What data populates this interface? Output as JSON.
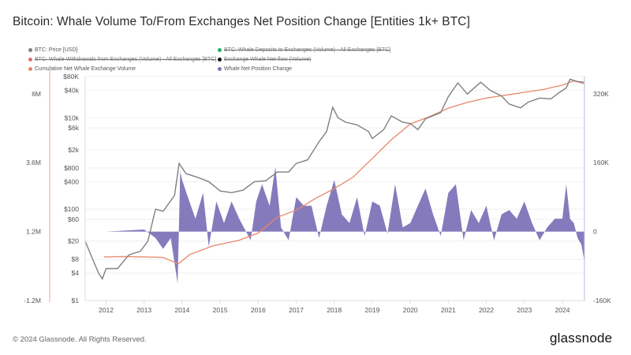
{
  "title": "Bitcoin: Whale Volume To/From Exchanges Net Position Change [Entities 1k+ BTC]",
  "footer": "© 2024 Glassnode. All Rights Reserved.",
  "brand": "glassnode",
  "colors": {
    "price": "#808080",
    "deposits": "#2eaa6b",
    "withdrawals": "#e06a6a",
    "netflow": "#111111",
    "cumulative": "#e8876a",
    "net_position": "#7e74b8"
  },
  "chart_data": {
    "type": "line",
    "title": "Bitcoin: Whale Volume To/From Exchanges Net Position Change [Entities 1k+ BTC]",
    "legend_position": "top",
    "legend": [
      {
        "label": "BTC: Price [USD]",
        "color_key": "price",
        "enabled": true
      },
      {
        "label": "BTC: Whale Deposits to Exchanges (Volume) - All Exchanges [BTC]",
        "color_key": "deposits",
        "enabled": false
      },
      {
        "label": "BTC: Whale Withdrawals from Exchanges (Volume) - All Exchanges [BTC]",
        "color_key": "withdrawals",
        "enabled": false
      },
      {
        "label": "Exchange Whale Net-flow (Volume)",
        "color_key": "netflow",
        "enabled": false
      },
      {
        "label": "Cumulative Net Whale Exchange Volume",
        "color_key": "cumulative",
        "enabled": true
      },
      {
        "label": "Whale Net Position Change",
        "color_key": "net_position",
        "enabled": true
      }
    ],
    "x_ticks": [
      "2012",
      "2013",
      "2014",
      "2015",
      "2016",
      "2017",
      "2018",
      "2019",
      "2020",
      "2021",
      "2022",
      "2023",
      "2024"
    ],
    "x_range": [
      2011.45,
      2024.58
    ],
    "price_axis": {
      "scale": "log",
      "range": [
        1,
        80000
      ],
      "ticks": [
        "$1",
        "$4",
        "$8",
        "$20",
        "$60",
        "$100",
        "$400",
        "$800",
        "$2k",
        "$6k",
        "$10k",
        "$40k",
        "$80K"
      ],
      "tick_values": [
        1,
        4,
        8,
        20,
        60,
        100,
        400,
        800,
        2000,
        6000,
        10000,
        40000,
        80000
      ]
    },
    "cumulative_axis": {
      "range": [
        -1200000,
        6600000
      ],
      "ticks": [
        "-1.2M",
        "1.2M",
        "3.6M",
        "6M"
      ],
      "tick_values": [
        -1200000,
        1200000,
        3600000,
        6000000
      ]
    },
    "net_position_axis": {
      "range": [
        -160000,
        360000
      ],
      "ticks": [
        "-160K",
        "0",
        "160K",
        "320K"
      ],
      "tick_values": [
        -160000,
        0,
        160000,
        320000
      ]
    },
    "series": [
      {
        "name": "BTC: Price [USD]",
        "color_key": "price",
        "kind": "line",
        "x": [
          2011.45,
          2011.6,
          2011.8,
          2011.9,
          2012.0,
          2012.3,
          2012.6,
          2012.9,
          2013.1,
          2013.3,
          2013.5,
          2013.8,
          2013.92,
          2014.1,
          2014.4,
          2014.7,
          2015.0,
          2015.3,
          2015.6,
          2015.9,
          2016.2,
          2016.5,
          2016.8,
          2017.0,
          2017.3,
          2017.6,
          2017.8,
          2017.96,
          2018.1,
          2018.3,
          2018.6,
          2018.9,
          2019.0,
          2019.3,
          2019.5,
          2019.8,
          2020.0,
          2020.2,
          2020.4,
          2020.8,
          2021.0,
          2021.25,
          2021.5,
          2021.85,
          2022.1,
          2022.4,
          2022.6,
          2022.9,
          2023.1,
          2023.4,
          2023.7,
          2023.9,
          2024.1,
          2024.2,
          2024.4,
          2024.58
        ],
        "values": [
          20,
          10,
          4,
          3,
          5,
          5,
          10,
          12,
          20,
          100,
          90,
          200,
          1000,
          600,
          500,
          400,
          250,
          230,
          260,
          400,
          420,
          650,
          650,
          1000,
          1200,
          3000,
          5000,
          17000,
          10000,
          8000,
          7000,
          5000,
          3500,
          5500,
          11000,
          8000,
          7500,
          5500,
          9500,
          13000,
          29000,
          58000,
          33000,
          60000,
          40000,
          30000,
          20000,
          16500,
          22000,
          27000,
          26000,
          35000,
          45000,
          70000,
          62000,
          60000
        ]
      },
      {
        "name": "Cumulative Net Whale Exchange Volume",
        "color_key": "cumulative",
        "kind": "line",
        "x": [
          2011.95,
          2012.5,
          2013.0,
          2013.5,
          2013.9,
          2014.2,
          2014.8,
          2015.5,
          2016.0,
          2016.5,
          2017.0,
          2017.5,
          2018.0,
          2018.5,
          2019.0,
          2019.5,
          2020.0,
          2020.5,
          2021.0,
          2021.5,
          2022.0,
          2022.5,
          2023.0,
          2023.5,
          2024.0,
          2024.3,
          2024.58
        ],
        "values": [
          320000,
          330000,
          320000,
          300000,
          80000,
          400000,
          700000,
          900000,
          1150000,
          1700000,
          1950000,
          2350000,
          2700000,
          3100000,
          3750000,
          4400000,
          4950000,
          5200000,
          5500000,
          5700000,
          5850000,
          5950000,
          6050000,
          6150000,
          6300000,
          6450000,
          6350000
        ]
      },
      {
        "name": "Whale Net Position Change",
        "color_key": "net_position",
        "kind": "area",
        "x": [
          2012.0,
          2012.6,
          2013.0,
          2013.3,
          2013.5,
          2013.7,
          2013.88,
          2013.95,
          2014.0,
          2014.15,
          2014.35,
          2014.55,
          2014.7,
          2014.9,
          2015.1,
          2015.3,
          2015.5,
          2015.8,
          2015.95,
          2016.1,
          2016.3,
          2016.45,
          2016.6,
          2016.8,
          2017.0,
          2017.2,
          2017.4,
          2017.6,
          2017.8,
          2018.0,
          2018.2,
          2018.4,
          2018.6,
          2018.8,
          2019.0,
          2019.2,
          2019.4,
          2019.6,
          2019.8,
          2020.0,
          2020.2,
          2020.4,
          2020.6,
          2020.8,
          2021.0,
          2021.2,
          2021.4,
          2021.6,
          2021.8,
          2022.0,
          2022.2,
          2022.4,
          2022.6,
          2022.8,
          2023.0,
          2023.2,
          2023.4,
          2023.6,
          2023.8,
          2024.0,
          2024.1,
          2024.2,
          2024.3,
          2024.4,
          2024.5,
          2024.58
        ],
        "values": [
          0,
          3000,
          5000,
          -15000,
          -40000,
          -15000,
          -120000,
          140000,
          120000,
          80000,
          30000,
          90000,
          -35000,
          70000,
          20000,
          70000,
          30000,
          -20000,
          70000,
          110000,
          60000,
          150000,
          10000,
          -20000,
          80000,
          60000,
          60000,
          -15000,
          60000,
          120000,
          40000,
          20000,
          80000,
          -10000,
          70000,
          60000,
          -5000,
          110000,
          10000,
          20000,
          60000,
          100000,
          40000,
          -10000,
          90000,
          110000,
          -20000,
          50000,
          20000,
          60000,
          -20000,
          40000,
          50000,
          30000,
          70000,
          20000,
          -20000,
          10000,
          30000,
          30000,
          110000,
          30000,
          20000,
          -15000,
          -30000,
          -70000
        ]
      }
    ]
  }
}
